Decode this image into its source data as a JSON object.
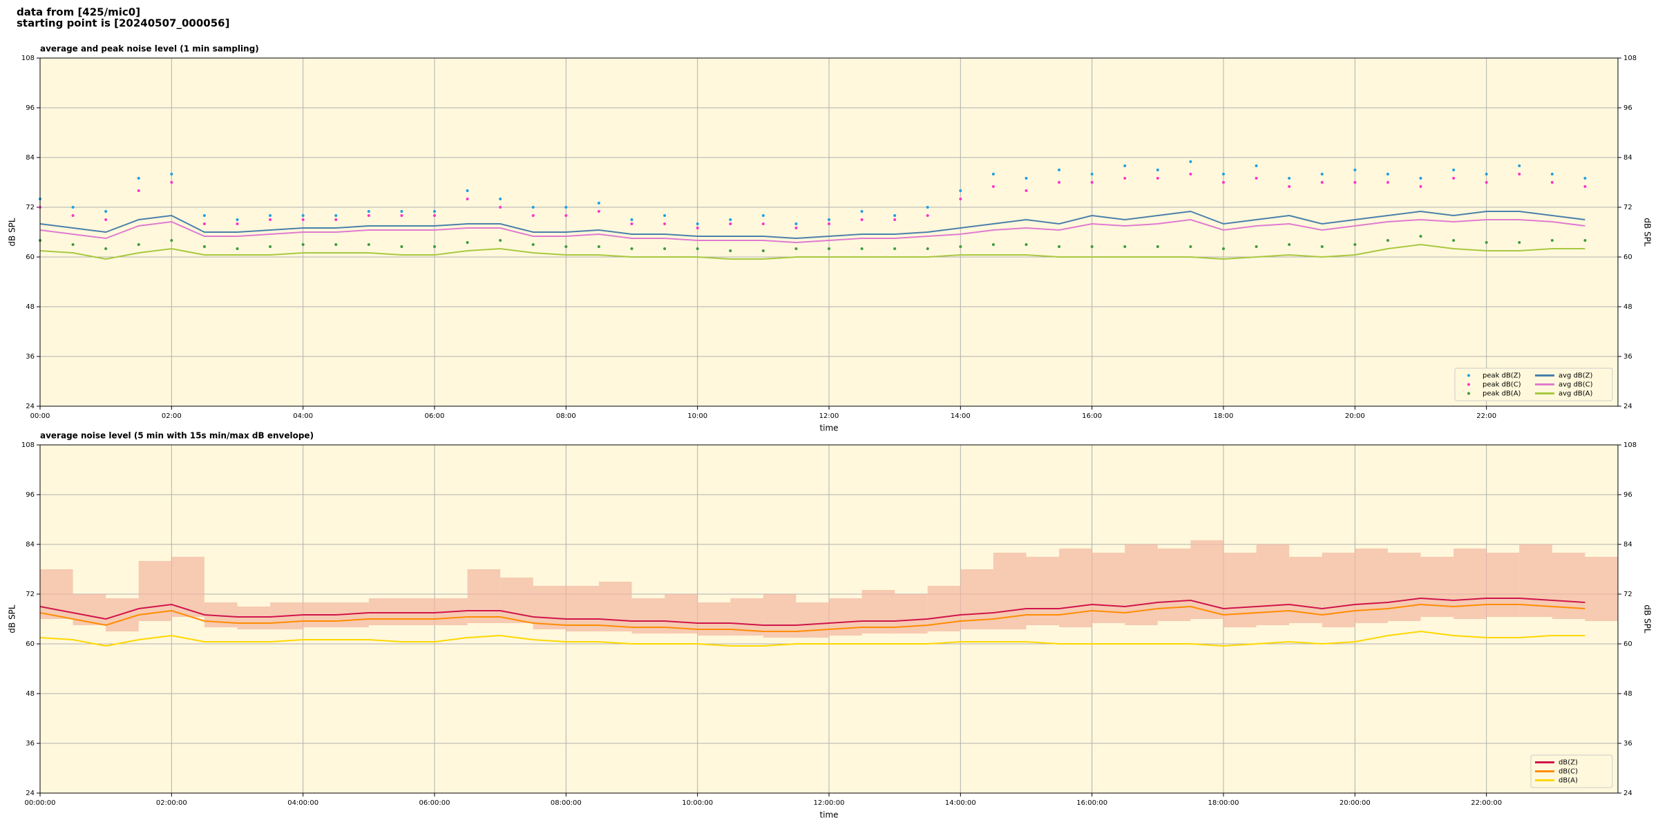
{
  "header": {
    "line1": "data from [425/mic0]",
    "line2": "starting point is [20240507_000056]"
  },
  "chart_data": [
    {
      "type": "line",
      "title": "average and peak noise level (1 min sampling)",
      "x_label": "time",
      "y_label": "dB SPL",
      "xlim": [
        0,
        24
      ],
      "ylim": [
        24,
        108
      ],
      "grid": true,
      "legend": "lower right",
      "legend_columns": 2,
      "background": "#fff8dc",
      "yticks": [
        24,
        36,
        48,
        60,
        72,
        84,
        96,
        108
      ],
      "xticks": [
        {
          "value": 0,
          "label": "00:00"
        },
        {
          "value": 2,
          "label": "02:00"
        },
        {
          "value": 4,
          "label": "04:00"
        },
        {
          "value": 6,
          "label": "06:00"
        },
        {
          "value": 8,
          "label": "08:00"
        },
        {
          "value": 10,
          "label": "10:00"
        },
        {
          "value": 12,
          "label": "12:00"
        },
        {
          "value": 14,
          "label": "14:00"
        },
        {
          "value": 16,
          "label": "16:00"
        },
        {
          "value": 18,
          "label": "18:00"
        },
        {
          "value": 20,
          "label": "20:00"
        },
        {
          "value": 22,
          "label": "22:00"
        }
      ],
      "x": [
        0,
        0.5,
        1,
        1.5,
        2,
        2.5,
        3,
        3.5,
        4,
        4.5,
        5,
        5.5,
        6,
        6.5,
        7,
        7.5,
        8,
        8.5,
        9,
        9.5,
        10,
        10.5,
        11,
        11.5,
        12,
        12.5,
        13,
        13.5,
        14,
        14.5,
        15,
        15.5,
        16,
        16.5,
        17,
        17.5,
        18,
        18.5,
        19,
        19.5,
        20,
        20.5,
        21,
        21.5,
        22,
        22.5,
        23,
        23.5
      ],
      "series": [
        {
          "name": "peak dB(Z)",
          "style": "points",
          "color": "#1f9fe0",
          "values": [
            74,
            72,
            71,
            79,
            80,
            70,
            69,
            70,
            70,
            70,
            71,
            71,
            71,
            76,
            74,
            72,
            72,
            73,
            69,
            70,
            68,
            69,
            70,
            68,
            69,
            71,
            70,
            72,
            76,
            80,
            79,
            81,
            80,
            82,
            81,
            83,
            80,
            82,
            79,
            80,
            81,
            80,
            79,
            81,
            80,
            82,
            80,
            79
          ]
        },
        {
          "name": "peak dB(C)",
          "style": "points",
          "color": "#ff33cc",
          "values": [
            72,
            70,
            69,
            76,
            78,
            68,
            68,
            69,
            69,
            69,
            70,
            70,
            70,
            74,
            72,
            70,
            70,
            71,
            68,
            68,
            67,
            68,
            68,
            67,
            68,
            69,
            69,
            70,
            74,
            77,
            76,
            78,
            78,
            79,
            79,
            80,
            78,
            79,
            77,
            78,
            78,
            78,
            77,
            79,
            78,
            80,
            78,
            77
          ]
        },
        {
          "name": "peak dB(A)",
          "style": "points",
          "color": "#3d9b3d",
          "values": [
            64,
            63,
            62,
            63,
            64,
            62.5,
            62,
            62.5,
            63,
            63,
            63,
            62.5,
            62.5,
            63.5,
            64,
            63,
            62.5,
            62.5,
            62,
            62,
            62,
            61.5,
            61.5,
            62,
            62,
            62,
            62,
            62,
            62.5,
            63,
            63,
            62.5,
            62.5,
            62.5,
            62.5,
            62.5,
            62,
            62.5,
            63,
            62.5,
            63,
            64,
            65,
            64,
            63.5,
            63.5,
            64,
            64
          ]
        },
        {
          "name": "avg dB(Z)",
          "style": "line",
          "color": "#4a7fab",
          "values": [
            68,
            67,
            66,
            69,
            70,
            66,
            66,
            66.5,
            67,
            67,
            67.5,
            67.5,
            67.5,
            68,
            68,
            66,
            66,
            66.5,
            65.5,
            65.5,
            65,
            65,
            65,
            64.5,
            65,
            65.5,
            65.5,
            66,
            67,
            68,
            69,
            68,
            70,
            69,
            70,
            71,
            68,
            69,
            70,
            68,
            69,
            70,
            71,
            70,
            71,
            71,
            70,
            69
          ]
        },
        {
          "name": "avg dB(C)",
          "style": "line",
          "color": "#e07ad0",
          "values": [
            66.5,
            65.5,
            64.5,
            67.5,
            68.5,
            65,
            65,
            65.5,
            66,
            66,
            66.5,
            66.5,
            66.5,
            67,
            67,
            65,
            65,
            65.5,
            64.5,
            64.5,
            64,
            64,
            64,
            63.5,
            64,
            64.5,
            64.5,
            65,
            65.5,
            66.5,
            67,
            66.5,
            68,
            67.5,
            68,
            69,
            66.5,
            67.5,
            68,
            66.5,
            67.5,
            68.5,
            69,
            68.5,
            69,
            69,
            68.5,
            67.5
          ]
        },
        {
          "name": "avg dB(A)",
          "style": "line",
          "color": "#a8c840",
          "values": [
            61.5,
            61,
            59.5,
            61,
            62,
            60.5,
            60.5,
            60.5,
            61,
            61,
            61,
            60.5,
            60.5,
            61.5,
            62,
            61,
            60.5,
            60.5,
            60,
            60,
            60,
            59.5,
            59.5,
            60,
            60,
            60,
            60,
            60,
            60.5,
            60.5,
            60.5,
            60,
            60,
            60,
            60,
            60,
            59.5,
            60,
            60.5,
            60,
            60.5,
            62,
            63,
            62,
            61.5,
            61.5,
            62,
            62
          ]
        }
      ]
    },
    {
      "type": "line",
      "title": "average noise level (5 min with 15s min/max dB envelope)",
      "x_label": "time",
      "y_label": "dB SPL",
      "xlim": [
        0,
        24
      ],
      "ylim": [
        24,
        108
      ],
      "grid": true,
      "legend": "lower right",
      "legend_columns": 1,
      "background": "#fff8dc",
      "yticks": [
        24,
        36,
        48,
        60,
        72,
        84,
        96,
        108
      ],
      "xticks": [
        {
          "value": 0,
          "label": "00:00:00"
        },
        {
          "value": 2,
          "label": "02:00:00"
        },
        {
          "value": 4,
          "label": "04:00:00"
        },
        {
          "value": 6,
          "label": "06:00:00"
        },
        {
          "value": 8,
          "label": "08:00:00"
        },
        {
          "value": 10,
          "label": "10:00:00"
        },
        {
          "value": 12,
          "label": "12:00:00"
        },
        {
          "value": 14,
          "label": "14:00:00"
        },
        {
          "value": 16,
          "label": "16:00:00"
        },
        {
          "value": 18,
          "label": "18:00:00"
        },
        {
          "value": 20,
          "label": "20:00:00"
        },
        {
          "value": 22,
          "label": "22:00:00"
        }
      ],
      "x": [
        0,
        0.5,
        1,
        1.5,
        2,
        2.5,
        3,
        3.5,
        4,
        4.5,
        5,
        5.5,
        6,
        6.5,
        7,
        7.5,
        8,
        8.5,
        9,
        9.5,
        10,
        10.5,
        11,
        11.5,
        12,
        12.5,
        13,
        13.5,
        14,
        14.5,
        15,
        15.5,
        16,
        16.5,
        17,
        17.5,
        18,
        18.5,
        19,
        19.5,
        20,
        20.5,
        21,
        21.5,
        22,
        22.5,
        23,
        23.5
      ],
      "series": [
        {
          "name": "dB(Z)",
          "style": "line",
          "color": "#d0144a",
          "envelope_color": "#f4b6a0",
          "values": [
            69,
            67.5,
            66,
            68.5,
            69.5,
            67,
            66.5,
            66.5,
            67,
            67,
            67.5,
            67.5,
            67.5,
            68,
            68,
            66.5,
            66,
            66,
            65.5,
            65.5,
            65,
            65,
            64.5,
            64.5,
            65,
            65.5,
            65.5,
            66,
            67,
            67.5,
            68.5,
            68.5,
            69.5,
            69,
            70,
            70.5,
            68.5,
            69,
            69.5,
            68.5,
            69.5,
            70,
            71,
            70.5,
            71,
            71,
            70.5,
            70
          ],
          "max": [
            78,
            72,
            71,
            80,
            81,
            70,
            69,
            70,
            70,
            70,
            71,
            71,
            71,
            78,
            76,
            74,
            74,
            75,
            71,
            72,
            70,
            71,
            72,
            70,
            71,
            73,
            72,
            74,
            78,
            82,
            81,
            83,
            82,
            84,
            83,
            85,
            82,
            84,
            81,
            82,
            83,
            82,
            81,
            83,
            82,
            84,
            82,
            81
          ],
          "min": [
            66,
            64.5,
            63,
            65.5,
            66.5,
            64,
            63.5,
            63.5,
            64,
            64,
            64.5,
            64.5,
            64.5,
            65,
            65,
            63.5,
            63,
            63,
            62.5,
            62.5,
            62,
            62,
            61.5,
            61.5,
            62,
            62.5,
            62.5,
            63,
            63.5,
            63.5,
            64.5,
            64,
            65,
            64.5,
            65.5,
            66,
            64,
            64.5,
            65,
            64,
            65,
            65.5,
            66.5,
            66,
            66.5,
            66.5,
            66,
            65.5
          ]
        },
        {
          "name": "dB(C)",
          "style": "line",
          "color": "#ff8c00",
          "values": [
            67.5,
            66,
            64.5,
            67,
            68,
            65.5,
            65,
            65,
            65.5,
            65.5,
            66,
            66,
            66,
            66.5,
            66.5,
            65,
            64.5,
            64.5,
            64,
            64,
            63.5,
            63.5,
            63,
            63,
            63.5,
            64,
            64,
            64.5,
            65.5,
            66,
            67,
            67,
            68,
            67.5,
            68.5,
            69,
            67,
            67.5,
            68,
            67,
            68,
            68.5,
            69.5,
            69,
            69.5,
            69.5,
            69,
            68.5
          ]
        },
        {
          "name": "dB(A)",
          "style": "line",
          "color": "#ffd700",
          "values": [
            61.5,
            61,
            59.5,
            61,
            62,
            60.5,
            60.5,
            60.5,
            61,
            61,
            61,
            60.5,
            60.5,
            61.5,
            62,
            61,
            60.5,
            60.5,
            60,
            60,
            60,
            59.5,
            59.5,
            60,
            60,
            60,
            60,
            60,
            60.5,
            60.5,
            60.5,
            60,
            60,
            60,
            60,
            60,
            59.5,
            60,
            60.5,
            60,
            60.5,
            62,
            63,
            62,
            61.5,
            61.5,
            62,
            62
          ]
        }
      ]
    }
  ]
}
